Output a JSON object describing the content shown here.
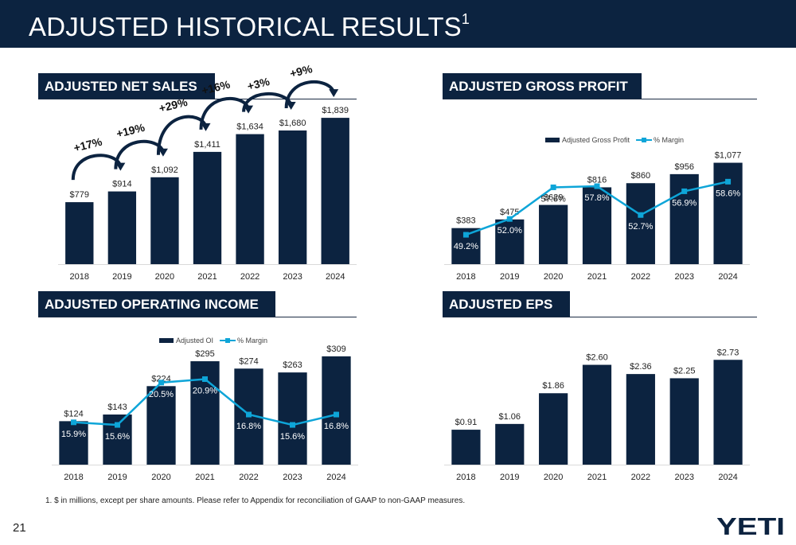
{
  "page": {
    "title": "ADJUSTED HISTORICAL RESULTS",
    "title_sup": "1",
    "footnote": "1. $ in millions, except per share amounts.  Please refer to Appendix for reconciliation of GAAP to non-GAAP measures.",
    "page_number": "21",
    "logo_text": "YETI"
  },
  "colors": {
    "navy": "#0c2340",
    "accent": "#0ea5d8",
    "arrow": "#0c2340"
  },
  "chart_data": [
    {
      "id": "net_sales",
      "type": "bar",
      "title": "ADJUSTED NET SALES",
      "categories": [
        "2018",
        "2019",
        "2020",
        "2021",
        "2022",
        "2023",
        "2024"
      ],
      "values": [
        779,
        914,
        1092,
        1411,
        1634,
        1680,
        1839
      ],
      "value_labels": [
        "$779",
        "$914",
        "$1,092",
        "$1,411",
        "$1,634",
        "$1,680",
        "$1,839"
      ],
      "growth_labels": [
        "+17%",
        "+19%",
        "+29%",
        "+16%",
        "+3%",
        "+9%"
      ],
      "ylim": [
        0,
        1950
      ],
      "grid": false
    },
    {
      "id": "gross_profit",
      "type": "bar",
      "title": "ADJUSTED GROSS PROFIT",
      "categories": [
        "2018",
        "2019",
        "2020",
        "2021",
        "2022",
        "2023",
        "2024"
      ],
      "series": [
        {
          "name": "Adjusted Gross Profit",
          "values": [
            383,
            475,
            629,
            816,
            860,
            956,
            1077
          ],
          "labels": [
            "$383",
            "$475",
            "$629",
            "$816",
            "$860",
            "$956",
            "$1,077"
          ]
        },
        {
          "name": "% Margin",
          "type": "line",
          "values": [
            49.2,
            52.0,
            57.6,
            57.8,
            52.7,
            56.9,
            58.6
          ],
          "labels": [
            "49.2%",
            "52.0%",
            "57.6%",
            "57.8%",
            "52.7%",
            "56.9%",
            "58.6%"
          ]
        }
      ],
      "ylim": [
        0,
        1200
      ],
      "margin_ylim": [
        44,
        64
      ],
      "legend": "top-center",
      "grid": false
    },
    {
      "id": "operating_income",
      "type": "bar",
      "title": "ADJUSTED OPERATING INCOME",
      "categories": [
        "2018",
        "2019",
        "2020",
        "2021",
        "2022",
        "2023",
        "2024"
      ],
      "series": [
        {
          "name": "Adjusted OI",
          "values": [
            124,
            143,
            224,
            295,
            274,
            263,
            309
          ],
          "labels": [
            "$124",
            "$143",
            "$224",
            "$295",
            "$274",
            "$263",
            "$309"
          ]
        },
        {
          "name": "% Margin",
          "type": "line",
          "values": [
            15.9,
            15.6,
            20.5,
            20.9,
            16.8,
            15.6,
            16.8
          ],
          "labels": [
            "15.9%",
            "15.6%",
            "20.5%",
            "20.9%",
            "16.8%",
            "15.6%",
            "16.8%"
          ]
        }
      ],
      "ylim": [
        0,
        345
      ],
      "margin_ylim": [
        11,
        25
      ],
      "legend": "top-center",
      "grid": false
    },
    {
      "id": "eps",
      "type": "bar",
      "title": "ADJUSTED EPS",
      "categories": [
        "2018",
        "2019",
        "2020",
        "2021",
        "2022",
        "2023",
        "2024"
      ],
      "values": [
        0.91,
        1.06,
        1.86,
        2.6,
        2.36,
        2.25,
        2.73
      ],
      "value_labels": [
        "$0.91",
        "$1.06",
        "$1.86",
        "$2.60",
        "$2.36",
        "$2.25",
        "$2.73"
      ],
      "ylim": [
        0,
        3.15
      ],
      "grid": false
    }
  ]
}
